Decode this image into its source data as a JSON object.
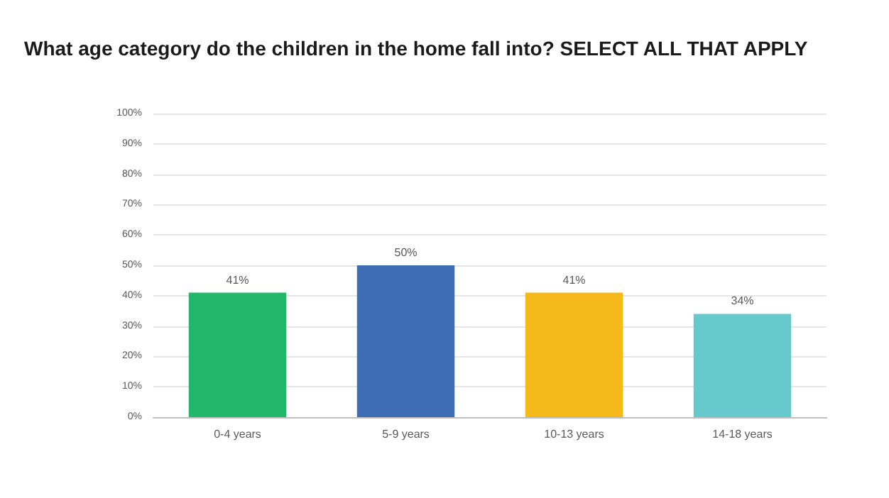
{
  "chart_data": {
    "type": "bar",
    "title": "What age category do the children in the home fall into? SELECT ALL THAT APPLY",
    "categories": [
      "0-4 years",
      "5-9 years",
      "10-13 years",
      "14-18 years"
    ],
    "values": [
      41,
      50,
      41,
      34
    ],
    "colors": [
      "#21b86b",
      "#3e6db5",
      "#f5b91a",
      "#66cacc"
    ],
    "value_labels": [
      "41%",
      "50%",
      "41%",
      "34%"
    ],
    "ylim": [
      0,
      100
    ],
    "yticks": [
      {
        "value": 0,
        "label": "0%"
      },
      {
        "value": 10,
        "label": "10%"
      },
      {
        "value": 20,
        "label": "20%"
      },
      {
        "value": 30,
        "label": "30%"
      },
      {
        "value": 40,
        "label": "40%"
      },
      {
        "value": 50,
        "label": "50%"
      },
      {
        "value": 60,
        "label": "60%"
      },
      {
        "value": 70,
        "label": "70%"
      },
      {
        "value": 80,
        "label": "80%"
      },
      {
        "value": 90,
        "label": "90%"
      },
      {
        "value": 100,
        "label": "100%"
      }
    ],
    "grid": "y"
  }
}
